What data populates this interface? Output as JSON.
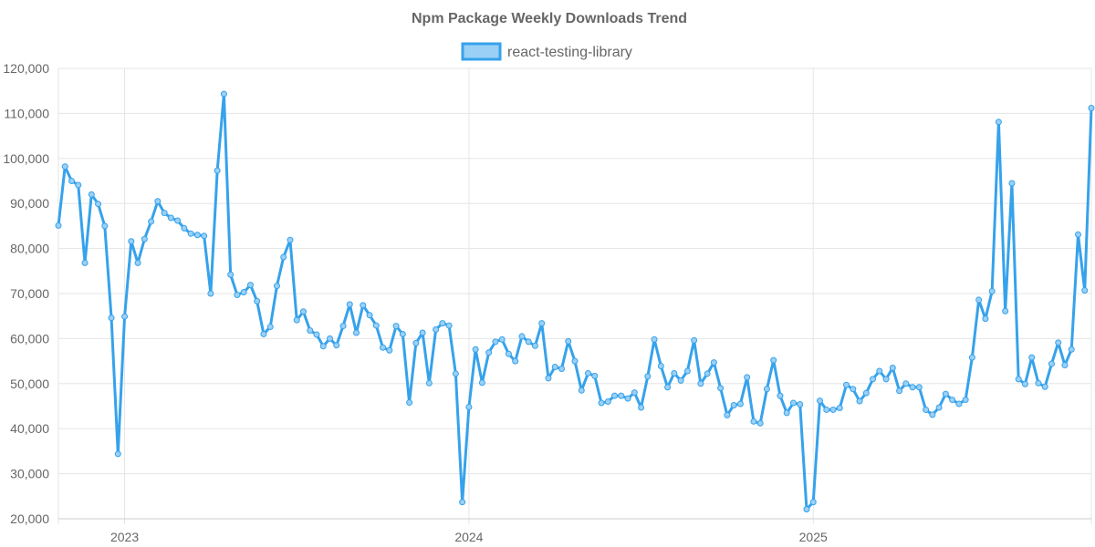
{
  "chart_data": {
    "type": "line",
    "title": "Npm Package Weekly Downloads Trend",
    "xlabel": "",
    "ylabel": "",
    "ylim": [
      20000,
      120000
    ],
    "y_ticks": [
      20000,
      30000,
      40000,
      50000,
      60000,
      70000,
      80000,
      90000,
      100000,
      110000,
      120000
    ],
    "y_tick_labels": [
      "20,000",
      "30,000",
      "40,000",
      "50,000",
      "60,000",
      "70,000",
      "80,000",
      "90,000",
      "100,000",
      "110,000",
      "120,000"
    ],
    "x_tick_labels": [
      "2023",
      "2024",
      "2025"
    ],
    "x_tick_indices": [
      10,
      62,
      114
    ],
    "legend_position": "top-center",
    "grid": true,
    "colors": {
      "line": "#36a2eb",
      "fill": "#9ad0f5",
      "grid": "#e5e5e5",
      "text": "#666666"
    },
    "series": [
      {
        "name": "react-testing-library",
        "values": [
          85100,
          98200,
          95000,
          94100,
          76800,
          92000,
          89900,
          85000,
          64600,
          34400,
          64900,
          81600,
          76800,
          82100,
          86000,
          90500,
          87900,
          86800,
          86200,
          84500,
          83300,
          83000,
          82800,
          70000,
          97300,
          114300,
          74200,
          69700,
          70300,
          71900,
          68300,
          61000,
          62600,
          71700,
          78100,
          81900,
          64100,
          66000,
          61800,
          60900,
          58300,
          60000,
          58500,
          62800,
          67600,
          61300,
          67400,
          65200,
          62900,
          58000,
          57400,
          62800,
          61000,
          45800,
          59000,
          61300,
          50100,
          62000,
          63400,
          62900,
          52200,
          23700,
          44800,
          57600,
          50200,
          56900,
          59300,
          59800,
          56600,
          55000,
          60500,
          59300,
          58400,
          63400,
          51200,
          53700,
          53300,
          59400,
          55000,
          48500,
          52300,
          51700,
          45700,
          46000,
          47300,
          47300,
          46700,
          48000,
          44700,
          51600,
          59800,
          53900,
          49200,
          52300,
          50700,
          52800,
          59600,
          50000,
          52200,
          54700,
          49000,
          43000,
          45200,
          45500,
          51400,
          41600,
          41200,
          48800,
          55200,
          47300,
          43500,
          45700,
          45400,
          22100,
          23700,
          46200,
          44200,
          44200,
          44600,
          49700,
          48800,
          46100,
          47900,
          51000,
          52800,
          51000,
          53500,
          48400,
          50000,
          49200,
          49200,
          44200,
          43100,
          44700,
          47700,
          46400,
          45500,
          46400,
          55800,
          68600,
          64400,
          70500,
          108100,
          66100,
          94500,
          51000,
          49900,
          55800,
          50100,
          49300,
          54400,
          59100,
          54100,
          57600,
          83100,
          70700,
          111200
        ]
      }
    ]
  }
}
